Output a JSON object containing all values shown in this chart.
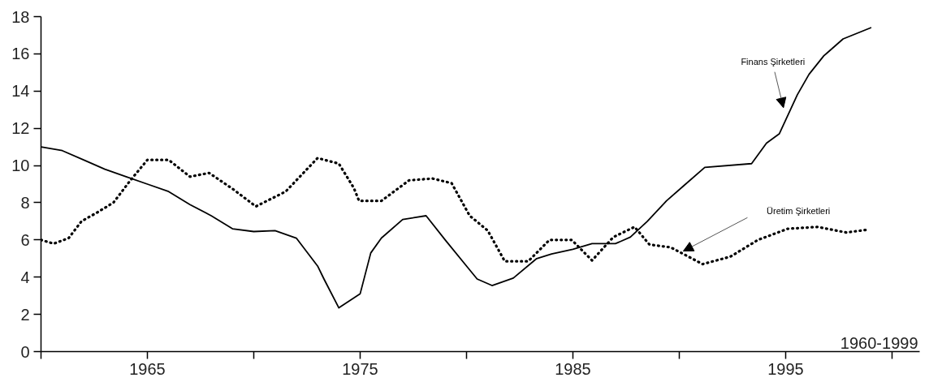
{
  "chart_data": {
    "type": "line",
    "xlim": [
      1960,
      2001.3
    ],
    "xticks": [
      {
        "value": 1960,
        "label": null
      },
      1965,
      {
        "value": 1970,
        "label": null
      },
      1975,
      {
        "value": 1980,
        "label": null
      },
      1985,
      {
        "value": 1990,
        "label": null
      },
      1995,
      {
        "value": 2000,
        "label": null
      }
    ],
    "ylim": [
      0,
      18
    ],
    "yticks": [
      0,
      2,
      4,
      6,
      8,
      10,
      12,
      14,
      16,
      18
    ],
    "grid": false,
    "legend": false,
    "marker": "none",
    "annotations": [
      "1960-1999"
    ],
    "series": [
      {
        "name": "Finans Şirketleri",
        "color": "#000000",
        "line_style": "solid",
        "x": [
          1960,
          1961,
          1962,
          1963,
          1964,
          1965,
          1966,
          1967,
          1968,
          1969,
          1970,
          1971,
          1972,
          1973,
          1973.3,
          1974,
          1975,
          1975.5,
          1976,
          1977,
          1978.1,
          1979,
          1980,
          1980.5,
          1981.2,
          1982.2,
          1983.3,
          1984,
          1985,
          1985.9,
          1987,
          1987.7,
          1988.5,
          1989.4,
          1990.2,
          1991.2,
          1993.4,
          1994.1,
          1994.7,
          1995.55,
          1996.1,
          1996.8,
          1997.7,
          1999
        ],
        "values": [
          11.0,
          10.8,
          10.3,
          9.8,
          9.4,
          9.0,
          8.6,
          7.9,
          7.3,
          6.6,
          6.45,
          6.5,
          6.1,
          4.6,
          3.9,
          2.35,
          3.1,
          5.3,
          6.1,
          7.1,
          7.3,
          6.0,
          4.6,
          3.9,
          3.55,
          3.95,
          5.0,
          5.25,
          5.5,
          5.8,
          5.8,
          6.15,
          7.0,
          8.1,
          8.9,
          9.9,
          10.1,
          11.2,
          11.7,
          13.8,
          14.9,
          15.9,
          16.8,
          17.4
        ]
      },
      {
        "name": "Üretim Şirketleri",
        "color": "#000000",
        "line_style": "dotted",
        "x": [
          1960,
          1960.6,
          1961.3,
          1961.9,
          1962.6,
          1963.4,
          1964.2,
          1965,
          1966,
          1967,
          1967.9,
          1969,
          1970.1,
          1971.5,
          1973,
          1974,
          1974.7,
          1974.95,
          1976,
          1977.3,
          1978.4,
          1979.3,
          1980.15,
          1981,
          1981.8,
          1982.9,
          1983.9,
          1984.95,
          1985.9,
          1986.9,
          1987.9,
          1988.6,
          1989.6,
          1991.1,
          1992.4,
          1993.7,
          1995.1,
          1996.5,
          1997.85,
          1998.85
        ],
        "values": [
          6.0,
          5.8,
          6.1,
          7.0,
          7.45,
          8.0,
          9.2,
          10.3,
          10.3,
          9.4,
          9.6,
          8.75,
          7.8,
          8.6,
          10.4,
          10.1,
          8.8,
          8.1,
          8.1,
          9.2,
          9.3,
          9.05,
          7.3,
          6.5,
          4.85,
          4.85,
          6.0,
          6.0,
          4.9,
          6.15,
          6.7,
          5.75,
          5.6,
          4.7,
          5.1,
          6.0,
          6.6,
          6.7,
          6.4,
          6.55
        ]
      }
    ]
  }
}
